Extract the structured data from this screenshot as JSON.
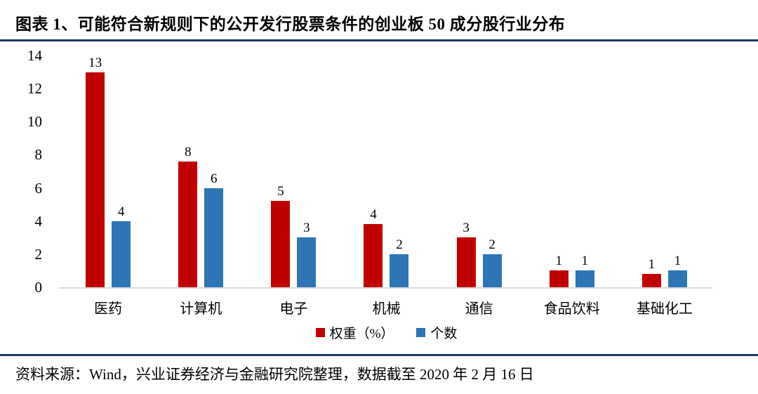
{
  "header": {
    "title": "图表 1、可能符合新规则下的公开发行股票条件的创业板 50 成分股行业分布"
  },
  "footer": {
    "source": "资料来源：Wind，兴业证券经济与金融研究院整理，数据截至 2020 年 2 月 16 日"
  },
  "colors": {
    "weight_red": "#C00000",
    "count_blue": "#2E75B6",
    "rule_navy": "#1F3864",
    "axis_gray": "#D9D9D9"
  },
  "chart_data": {
    "type": "bar",
    "title": "可能符合新规则下的公开发行股票条件的创业板50成分股行业分布",
    "categories": [
      "医药",
      "计算机",
      "电子",
      "机械",
      "通信",
      "食品饮料",
      "基础化工"
    ],
    "series": [
      {
        "name": "权重（%）",
        "color_key": "weight_red",
        "labels": [
          "13",
          "8",
          "5",
          "4",
          "3",
          "1",
          "1"
        ],
        "values": [
          13,
          8,
          5,
          4,
          3,
          1,
          1
        ],
        "bar_heights": [
          13.0,
          7.6,
          5.2,
          3.8,
          3.0,
          1.0,
          0.8
        ]
      },
      {
        "name": "个数",
        "color_key": "count_blue",
        "labels": [
          "4",
          "6",
          "3",
          "2",
          "2",
          "1",
          "1"
        ],
        "values": [
          4,
          6,
          3,
          2,
          2,
          1,
          1
        ],
        "bar_heights": [
          4,
          6,
          3,
          2,
          2,
          1,
          1
        ]
      }
    ],
    "xlabel": "",
    "ylabel": "",
    "ylim": [
      0,
      14
    ],
    "yticks": [
      0,
      2,
      4,
      6,
      8,
      10,
      12,
      14
    ],
    "grid": false,
    "legend_position": "bottom"
  }
}
